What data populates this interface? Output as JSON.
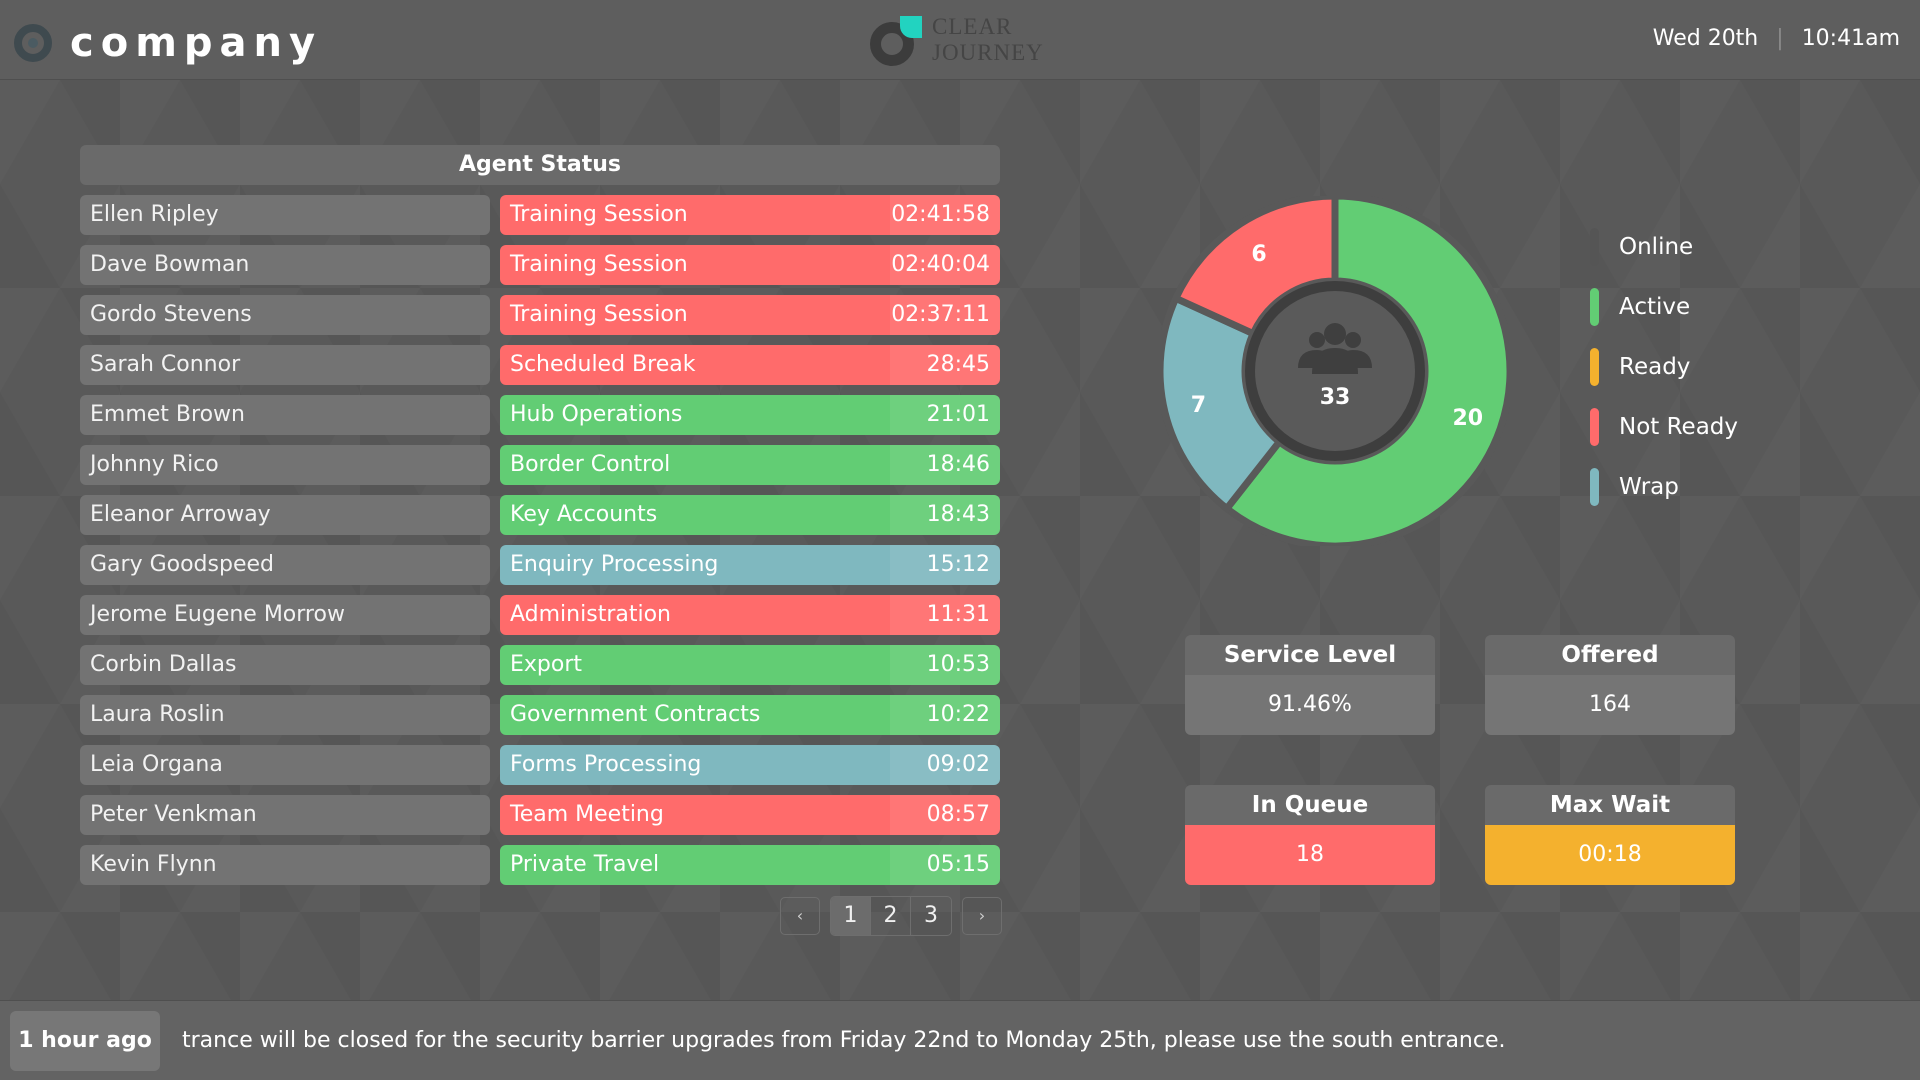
{
  "header": {
    "brand": "company",
    "center_logo_line1": "CLEAR",
    "center_logo_line2": "JOURNEY",
    "date": "Wed 20th",
    "time": "10:41am"
  },
  "agent_panel": {
    "title": "Agent Status",
    "agents": [
      {
        "name": "Ellen Ripley",
        "status": "Training Session",
        "time": "02:41:58",
        "color": "#ff6b6b"
      },
      {
        "name": "Dave Bowman",
        "status": "Training Session",
        "time": "02:40:04",
        "color": "#ff6b6b"
      },
      {
        "name": "Gordo Stevens",
        "status": "Training Session",
        "time": "02:37:11",
        "color": "#ff6b6b"
      },
      {
        "name": "Sarah Connor",
        "status": "Scheduled Break",
        "time": "28:45",
        "color": "#ff6b6b"
      },
      {
        "name": "Emmet Brown",
        "status": "Hub Operations",
        "time": "21:01",
        "color": "#62cd74"
      },
      {
        "name": "Johnny Rico",
        "status": "Border Control",
        "time": "18:46",
        "color": "#62cd74"
      },
      {
        "name": "Eleanor Arroway",
        "status": "Key Accounts",
        "time": "18:43",
        "color": "#62cd74"
      },
      {
        "name": "Gary Goodspeed",
        "status": "Enquiry Processing",
        "time": "15:12",
        "color": "#7fb8bf"
      },
      {
        "name": "Jerome Eugene Morrow",
        "status": "Administration",
        "time": "11:31",
        "color": "#ff6b6b"
      },
      {
        "name": "Corbin Dallas",
        "status": "Export",
        "time": "10:53",
        "color": "#62cd74"
      },
      {
        "name": "Laura Roslin",
        "status": "Government Contracts",
        "time": "10:22",
        "color": "#62cd74"
      },
      {
        "name": "Leia Organa",
        "status": "Forms Processing",
        "time": "09:02",
        "color": "#7fb8bf"
      },
      {
        "name": "Peter Venkman",
        "status": "Team Meeting",
        "time": "08:57",
        "color": "#ff6b6b"
      },
      {
        "name": "Kevin Flynn",
        "status": "Private Travel",
        "time": "05:15",
        "color": "#62cd74"
      }
    ],
    "pagination": {
      "prev_glyph": "‹",
      "next_glyph": "›",
      "pages": [
        "1",
        "2",
        "3"
      ],
      "active_index": 0
    }
  },
  "chart_data": {
    "type": "pie",
    "title": "",
    "total": "33",
    "center_icon": "users-icon",
    "slices": [
      {
        "label": "Active",
        "value": 20,
        "color": "#62cd74"
      },
      {
        "label": "Wrap",
        "value": 7,
        "color": "#7fb8bf"
      },
      {
        "label": "Not Ready",
        "value": 6,
        "color": "#ff6b6b"
      }
    ],
    "legend": [
      {
        "label": "Online",
        "color": "#555555"
      },
      {
        "label": "Active",
        "color": "#62cd74"
      },
      {
        "label": "Ready",
        "color": "#f4b12e"
      },
      {
        "label": "Not Ready",
        "color": "#ff6b6b"
      },
      {
        "label": "Wrap",
        "color": "#7fb8bf"
      }
    ],
    "legend_position": "right"
  },
  "stats": {
    "service_level": {
      "label": "Service Level",
      "value": "91.46%",
      "color": "#757575"
    },
    "offered": {
      "label": "Offered",
      "value": "164",
      "color": "#757575"
    },
    "in_queue": {
      "label": "In Queue",
      "value": "18",
      "color": "#ff6b6b"
    },
    "max_wait": {
      "label": "Max Wait",
      "value": "00:18",
      "color": "#f4b12e"
    }
  },
  "footer": {
    "badge": "1 hour ago",
    "message": "trance will be closed for the security barrier upgrades from Friday 22nd to Monday 25th, please use the south entrance."
  }
}
